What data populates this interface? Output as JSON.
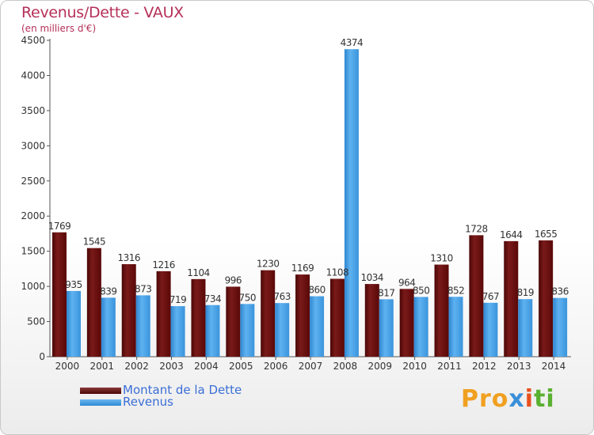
{
  "title": "Revenus/Dette - VAUX",
  "subtitle": "(en milliers d'€)",
  "legend": {
    "debt_label": "Montant de la Dette",
    "revenue_label": "Revenus"
  },
  "logo": {
    "text": "Proxiti"
  },
  "colors": {
    "title": "#b5305a",
    "debt": "#6b0f0f",
    "revenue": "#4aa3e6",
    "legend_text": "#3b6fd6"
  },
  "chart_data": {
    "type": "bar",
    "title": "Revenus/Dette - VAUX",
    "subtitle": "(en milliers d'€)",
    "xlabel": "",
    "ylabel": "",
    "ylim": [
      0,
      4500
    ],
    "yticks": [
      0,
      500,
      1000,
      1500,
      2000,
      2500,
      3000,
      3500,
      4000,
      4500
    ],
    "categories": [
      "2000",
      "2001",
      "2002",
      "2003",
      "2004",
      "2005",
      "2006",
      "2007",
      "2008",
      "2009",
      "2010",
      "2011",
      "2012",
      "2013",
      "2014"
    ],
    "series": [
      {
        "name": "Montant de la Dette",
        "values": [
          1769,
          1545,
          1316,
          1216,
          1104,
          996,
          1230,
          1169,
          1108,
          1034,
          964,
          1310,
          1728,
          1644,
          1655
        ]
      },
      {
        "name": "Revenus",
        "values": [
          935,
          839,
          873,
          719,
          734,
          750,
          763,
          860,
          4374,
          817,
          850,
          852,
          767,
          819,
          836
        ]
      }
    ],
    "grid": false,
    "legend_position": "bottom-left"
  }
}
